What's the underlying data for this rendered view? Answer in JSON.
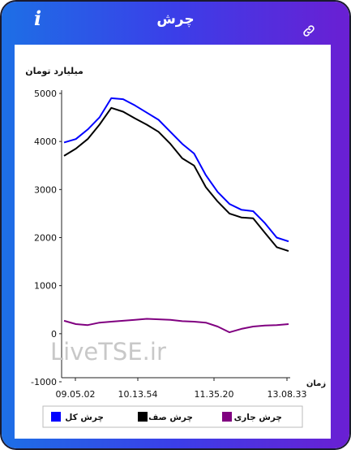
{
  "header": {
    "title": "چرش",
    "info_icon": "info-icon",
    "link_icon": "link-icon"
  },
  "watermark": "LiveTSE.ir",
  "legend": {
    "items": [
      "چرش کل",
      "چرش صف",
      "چرش جاری"
    ]
  },
  "chart_data": {
    "type": "line",
    "ylabel": "میلیارد تومان",
    "xlabel": "زمان",
    "ylim": [
      -1000,
      5000
    ],
    "yticks": [
      5000,
      4000,
      3000,
      2000,
      1000,
      0,
      -1000
    ],
    "xticks": [
      "09.05.02",
      "10.13.54",
      "11.35.20",
      "13.08.33"
    ],
    "legend_position": "bottom",
    "colors": {
      "total": "#0000ff",
      "queue": "#000000",
      "current": "#800080"
    },
    "series": [
      {
        "name": "چرش کل",
        "color": "#0000ff",
        "values": [
          3980,
          4050,
          4250,
          4500,
          4900,
          4880,
          4750,
          4600,
          4450,
          4200,
          3950,
          3750,
          3300,
          2950,
          2700,
          2580,
          2550,
          2300,
          2000,
          1920
        ]
      },
      {
        "name": "چرش صف",
        "color": "#000000",
        "values": [
          3700,
          3850,
          4050,
          4350,
          4700,
          4620,
          4480,
          4350,
          4200,
          3950,
          3650,
          3500,
          3050,
          2750,
          2500,
          2420,
          2400,
          2100,
          1800,
          1720
        ]
      },
      {
        "name": "چرش جاری",
        "color": "#800080",
        "values": [
          270,
          200,
          180,
          230,
          250,
          270,
          290,
          310,
          300,
          290,
          260,
          250,
          230,
          150,
          30,
          100,
          150,
          170,
          180,
          200
        ]
      }
    ]
  }
}
